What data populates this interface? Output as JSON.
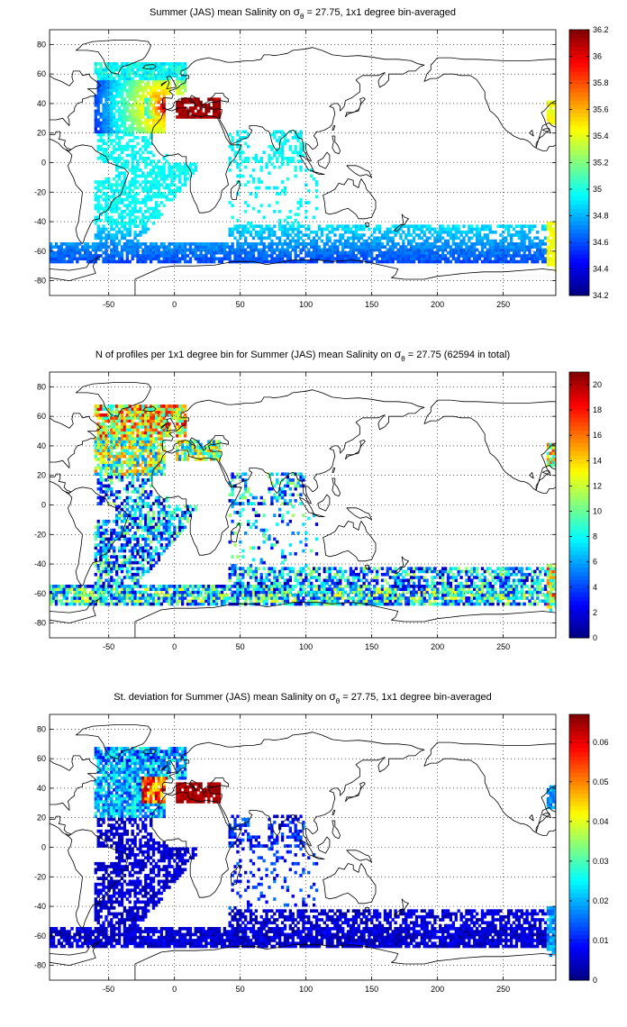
{
  "chart_data": [
    {
      "type": "heatmap",
      "title_parts": [
        "Summer (JAS) mean Salinity on ",
        "σ",
        "θ",
        " = 27.75, 1x1 degree bin-averaged"
      ],
      "xlim": [
        -95,
        290
      ],
      "ylim": [
        -90,
        90
      ],
      "xticks": [
        -50,
        0,
        50,
        100,
        150,
        200,
        250
      ],
      "yticks": [
        -80,
        -60,
        -40,
        -20,
        0,
        20,
        40,
        60,
        80
      ],
      "grid": true,
      "colormap": "jet",
      "colorbar": {
        "range": [
          34.2,
          36.2
        ],
        "ticks": [
          "34.2",
          "34.4",
          "34.6",
          "34.8",
          "35",
          "35.2",
          "35.4",
          "35.6",
          "35.8",
          "36",
          "36.2"
        ]
      },
      "field": "salinity_mean"
    },
    {
      "type": "heatmap",
      "title_parts": [
        "N of profiles per 1x1 degree bin for Summer (JAS) mean Salinity on ",
        "σ",
        "θ",
        " = 27.75 (62594 in total)"
      ],
      "xlim": [
        -95,
        290
      ],
      "ylim": [
        -90,
        90
      ],
      "xticks": [
        -50,
        0,
        50,
        100,
        150,
        200,
        250
      ],
      "yticks": [
        -80,
        -60,
        -40,
        -20,
        0,
        20,
        40,
        60,
        80
      ],
      "grid": true,
      "colormap": "jet",
      "colorbar": {
        "range": [
          0,
          21
        ],
        "ticks": [
          "0",
          "2",
          "4",
          "6",
          "8",
          "10",
          "12",
          "14",
          "16",
          "18",
          "20"
        ]
      },
      "field": "profile_count"
    },
    {
      "type": "heatmap",
      "title_parts": [
        "St. deviation for Summer (JAS) mean Salinity on ",
        "σ",
        "θ",
        " = 27.75, 1x1 degree bin-averaged"
      ],
      "xlim": [
        -95,
        290
      ],
      "ylim": [
        -90,
        90
      ],
      "xticks": [
        -50,
        0,
        50,
        100,
        150,
        200,
        250
      ],
      "yticks": [
        -80,
        -60,
        -40,
        -20,
        0,
        20,
        40,
        60,
        80
      ],
      "grid": true,
      "colormap": "jet",
      "colorbar": {
        "range": [
          0,
          0.067
        ],
        "ticks": [
          "0",
          "0.01",
          "0.02",
          "0.03",
          "0.04",
          "0.05",
          "0.06"
        ]
      },
      "field": "salinity_std"
    }
  ]
}
